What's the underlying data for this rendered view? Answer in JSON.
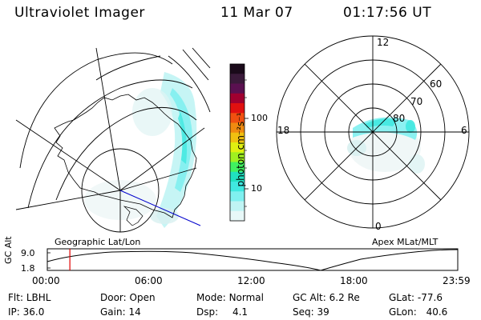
{
  "header": {
    "instrument": "Ultraviolet Imager",
    "date": "11 Mar 07",
    "time": "01:17:56 UT"
  },
  "colorbar": {
    "unit": "photon cm⁻²s⁻¹",
    "ticks": [
      "100",
      "10"
    ],
    "colors": [
      "#1a0a1a",
      "#3a1a3a",
      "#5a1050",
      "#a00030",
      "#e01010",
      "#f05010",
      "#f08a10",
      "#f0c010",
      "#e0f010",
      "#a0f020",
      "#40f060",
      "#20e0c0",
      "#40e8e0",
      "#80f0f0",
      "#c0f4f4",
      "#e8f8f8"
    ]
  },
  "left_panel": {
    "label": "Geographic Lat/Lon"
  },
  "right_panel": {
    "label": "Apex MLat/MLT",
    "mlt_labels": {
      "top": "12",
      "left": "18",
      "right": "6",
      "bottom": "0"
    },
    "lat_labels": [
      "60",
      "70",
      "80"
    ]
  },
  "altitude_plot": {
    "axis_label": "GC Alt",
    "y_ticks": [
      "9.0",
      "1.8"
    ],
    "x_ticks": [
      "00:00",
      "06:00",
      "12:00",
      "18:00",
      "23:59"
    ],
    "current_time_fraction": 0.055,
    "marker_color": "#e00000"
  },
  "info": {
    "flt_label": "Flt:",
    "flt_value": "LBHL",
    "door_label": "Door:",
    "door_value": "Open",
    "mode_label": "Mode:",
    "mode_value": "Normal",
    "gcalt_label": "GC Alt:",
    "gcalt_value": "6.2 Re",
    "glat_label": "GLat:",
    "glat_value": "-77.6",
    "ip_label": "IP:",
    "ip_value": "36.0",
    "gain_label": "Gain:",
    "gain_value": "14",
    "dsp_label": "Dsp:",
    "dsp_value": "4.1",
    "seq_label": "Seq:",
    "seq_value": "39",
    "glon_label": "GLon:",
    "glon_value": "40.6"
  }
}
